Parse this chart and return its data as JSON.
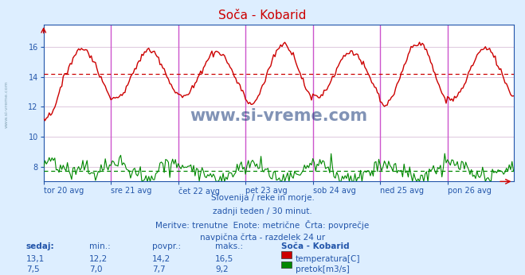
{
  "title": "Soča - Kobarid",
  "title_color": "#cc0000",
  "bg_color": "#ddeeff",
  "plot_bg_color": "#ffffff",
  "grid_color": "#ddc8dd",
  "axis_color": "#2255aa",
  "text_color": "#2255aa",
  "watermark": "www.si-vreme.com",
  "xlabel_ticks": [
    "tor 20 avg",
    "sre 21 avg",
    "čet 22 avg",
    "pet 23 avg",
    "sob 24 avg",
    "ned 25 avg",
    "pon 26 avg"
  ],
  "n_days": 7,
  "temp_avg": 14.2,
  "flow_avg": 7.7,
  "ymin": 7.0,
  "ymax": 17.5,
  "yticks": [
    8,
    10,
    12,
    14,
    16
  ],
  "temp_color": "#cc0000",
  "flow_color": "#008800",
  "vline_color": "#cc55cc",
  "subtitle1": "Slovenija / reke in morje.",
  "subtitle2": "zadnji teden / 30 minut.",
  "subtitle3": "Meritve: trenutne  Enote: metrične  Črta: povprečje",
  "subtitle4": "navpična črta - razdelek 24 ur",
  "footer_cols": [
    "sedaj:",
    "min.:",
    "povpr.:",
    "maks.:",
    "Soča - Kobarid"
  ],
  "footer_temp": [
    "13,1",
    "12,2",
    "14,2",
    "16,5",
    "temperatura[C]"
  ],
  "footer_flow": [
    "7,5",
    "7,0",
    "7,7",
    "9,2",
    "pretok[m3/s]"
  ],
  "watermark_color": "#1a3a7a",
  "left_label": "www.si-vreme.com"
}
